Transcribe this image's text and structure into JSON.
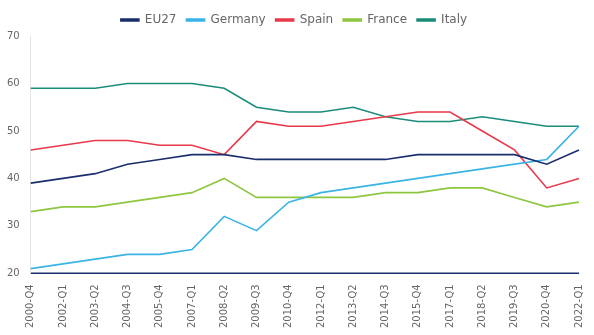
{
  "chart_data": {
    "type": "line",
    "categories": [
      "2000-Q4",
      "2002-Q1",
      "2003-Q2",
      "2004-Q3",
      "2005-Q4",
      "2007-Q1",
      "2008-Q2",
      "2009-Q3",
      "2010-Q4",
      "2012-Q1",
      "2013-Q2",
      "2014-Q3",
      "2015-Q4",
      "2017-Q1",
      "2018-Q2",
      "2019-Q3",
      "2020-Q4",
      "2022-Q1"
    ],
    "series": [
      {
        "name": "EU27",
        "color": "#1a2e6e",
        "values": [
          39,
          40,
          41,
          43,
          44,
          45,
          45,
          44,
          44,
          44,
          44,
          44,
          45,
          45,
          45,
          45,
          43,
          46
        ]
      },
      {
        "name": "Germany",
        "color": "#3ab4e5",
        "values": [
          21,
          22,
          23,
          24,
          24,
          25,
          32,
          29,
          35,
          37,
          38,
          39,
          40,
          41,
          42,
          43,
          44,
          51
        ]
      },
      {
        "name": "Spain",
        "color": "#e8394a",
        "values": [
          46,
          47,
          48,
          48,
          47,
          47,
          45,
          52,
          51,
          51,
          52,
          53,
          54,
          54,
          50,
          46,
          38,
          40
        ]
      },
      {
        "name": "France",
        "color": "#8dc63f",
        "values": [
          33,
          34,
          34,
          35,
          36,
          37,
          40,
          36,
          36,
          36,
          36,
          37,
          37,
          38,
          38,
          36,
          34,
          35
        ]
      },
      {
        "name": "Italy",
        "color": "#1a8c7a",
        "values": [
          59,
          59,
          59,
          60,
          60,
          60,
          59,
          55,
          54,
          54,
          55,
          53,
          52,
          52,
          53,
          52,
          51,
          51
        ]
      }
    ],
    "ylim": [
      20,
      70
    ],
    "yticks": [
      20,
      30,
      40,
      50,
      60,
      70
    ],
    "hline": {
      "y": 20,
      "color": "#1a2e6e"
    },
    "grid": false,
    "legend": "top"
  }
}
